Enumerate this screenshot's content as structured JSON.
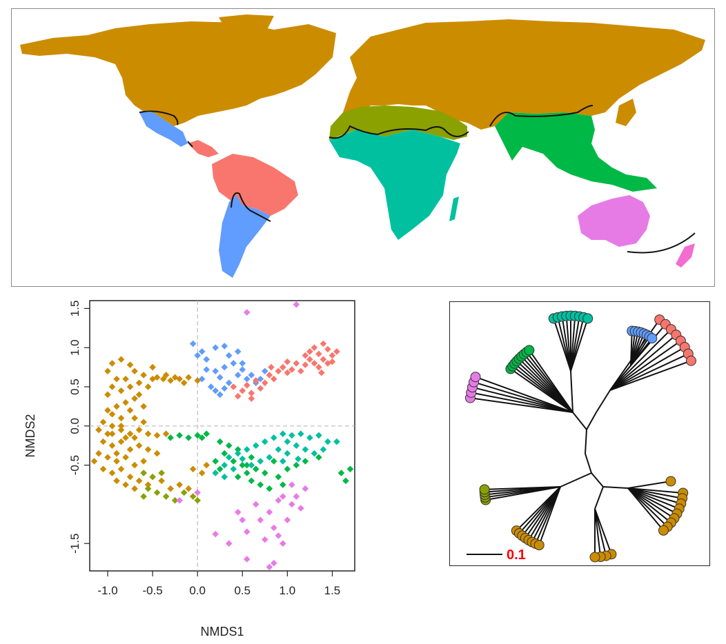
{
  "colors": {
    "palearctic_nearctic": "#cc8c00",
    "saharo_arabian": "#8aa100",
    "afrotropical": "#00c0a0",
    "oriental": "#00b846",
    "australian": "#e77be6",
    "new_zealand": "#f36cd0",
    "neotropical": "#f8766d",
    "panamanian_chilean": "#619cff"
  },
  "chart_data": [
    {
      "type": "scatter",
      "xlabel": "NMDS1",
      "ylabel": "NMDS2",
      "xlim": [
        -1.2,
        1.75
      ],
      "ylim": [
        -1.85,
        1.6
      ],
      "x_ticks": [
        "-1.0",
        "-0.5",
        "0.0",
        "0.5",
        "1.0",
        "1.5"
      ],
      "x_tick_values": [
        -1.0,
        -0.5,
        0.0,
        0.5,
        1.0,
        1.5
      ],
      "y_ticks": [
        "-1.5",
        "-0.5",
        "0.0",
        "0.5",
        "1.0",
        "1.5"
      ],
      "y_tick_values": [
        -1.5,
        -0.5,
        0.0,
        0.5,
        1.0,
        1.5
      ],
      "grid": false,
      "reference_lines": [
        0,
        0
      ],
      "series": [
        {
          "color": "#cc8c00",
          "points": [
            [
              -0.95,
              0.8
            ],
            [
              -0.85,
              0.85
            ],
            [
              -0.75,
              0.78
            ],
            [
              -0.7,
              0.7
            ],
            [
              -0.6,
              0.65
            ],
            [
              -0.5,
              0.6
            ],
            [
              -0.45,
              0.62
            ],
            [
              -0.38,
              0.6
            ],
            [
              -0.3,
              0.58
            ],
            [
              -0.2,
              0.6
            ],
            [
              -0.1,
              0.62
            ],
            [
              0.0,
              0.58
            ],
            [
              -0.15,
              0.55
            ],
            [
              -0.9,
              0.6
            ],
            [
              -0.95,
              0.5
            ],
            [
              -1.0,
              0.4
            ],
            [
              -0.85,
              0.45
            ],
            [
              -0.75,
              0.5
            ],
            [
              -0.65,
              0.4
            ],
            [
              -0.7,
              0.35
            ],
            [
              -0.8,
              0.3
            ],
            [
              -0.9,
              0.25
            ],
            [
              -1.0,
              0.2
            ],
            [
              -0.95,
              0.15
            ],
            [
              -0.85,
              0.1
            ],
            [
              -0.75,
              0.2
            ],
            [
              -0.7,
              0.1
            ],
            [
              -0.6,
              0.05
            ],
            [
              -1.05,
              0.05
            ],
            [
              -1.1,
              -0.05
            ],
            [
              -0.95,
              -0.1
            ],
            [
              -0.85,
              -0.05
            ],
            [
              -0.75,
              -0.1
            ],
            [
              -0.65,
              -0.05
            ],
            [
              -0.55,
              -0.1
            ],
            [
              -0.45,
              -0.12
            ],
            [
              -0.35,
              -0.1
            ],
            [
              -1.05,
              -0.2
            ],
            [
              -0.95,
              -0.25
            ],
            [
              -0.85,
              -0.2
            ],
            [
              -0.75,
              -0.3
            ],
            [
              -0.65,
              -0.25
            ],
            [
              -0.55,
              -0.3
            ],
            [
              -0.45,
              -0.35
            ],
            [
              -1.1,
              -0.35
            ],
            [
              -1.0,
              -0.4
            ],
            [
              -0.9,
              -0.45
            ],
            [
              -0.8,
              -0.4
            ],
            [
              -0.7,
              -0.5
            ],
            [
              -0.6,
              -0.45
            ],
            [
              -1.15,
              -0.45
            ],
            [
              -1.05,
              -0.55
            ],
            [
              -0.95,
              -0.6
            ],
            [
              -0.85,
              -0.55
            ],
            [
              -0.75,
              -0.65
            ],
            [
              -0.65,
              -0.7
            ],
            [
              -0.9,
              -0.7
            ],
            [
              -0.8,
              -0.75
            ],
            [
              -0.7,
              -0.8
            ],
            [
              -0.55,
              -0.75
            ],
            [
              -0.4,
              -0.7
            ],
            [
              -0.3,
              -0.8
            ],
            [
              -0.2,
              -0.75
            ],
            [
              -0.1,
              -0.8
            ],
            [
              0.05,
              -0.6
            ],
            [
              -0.05,
              -0.55
            ],
            [
              -1.0,
              0.7
            ],
            [
              -0.8,
              0.6
            ],
            [
              -0.55,
              0.5
            ],
            [
              -0.85,
              0.0
            ],
            [
              -0.95,
              0.0
            ],
            [
              -0.7,
              -0.15
            ],
            [
              -0.6,
              0.25
            ],
            [
              -0.5,
              0.75
            ],
            [
              -0.65,
              0.55
            ],
            [
              -0.35,
              0.65
            ],
            [
              -0.25,
              0.62
            ],
            [
              -1.0,
              -0.1
            ],
            [
              -0.9,
              -0.35
            ],
            [
              -0.8,
              -0.15
            ],
            [
              0.1,
              -0.5
            ]
          ]
        },
        {
          "color": "#619cff",
          "points": [
            [
              -0.05,
              1.05
            ],
            [
              0.05,
              0.95
            ],
            [
              0.0,
              0.9
            ],
            [
              0.1,
              0.85
            ],
            [
              0.2,
              1.0
            ],
            [
              0.3,
              1.02
            ],
            [
              0.35,
              0.9
            ],
            [
              0.45,
              0.95
            ],
            [
              0.4,
              0.8
            ],
            [
              0.3,
              0.75
            ],
            [
              0.2,
              0.7
            ],
            [
              0.1,
              0.72
            ],
            [
              0.25,
              0.62
            ],
            [
              0.35,
              0.55
            ],
            [
              0.45,
              0.65
            ],
            [
              0.5,
              0.72
            ],
            [
              0.55,
              0.6
            ],
            [
              0.6,
              0.65
            ],
            [
              0.65,
              0.55
            ],
            [
              0.7,
              0.6
            ],
            [
              0.75,
              0.7
            ],
            [
              0.2,
              0.45
            ],
            [
              0.25,
              0.4
            ],
            [
              0.15,
              0.5
            ],
            [
              0.3,
              0.48
            ],
            [
              0.05,
              0.6
            ],
            [
              0.5,
              0.8
            ]
          ]
        },
        {
          "color": "#f8766d",
          "points": [
            [
              0.4,
              0.5
            ],
            [
              0.5,
              0.45
            ],
            [
              0.6,
              0.42
            ],
            [
              0.45,
              0.38
            ],
            [
              0.55,
              0.52
            ],
            [
              0.75,
              0.55
            ],
            [
              0.8,
              0.65
            ],
            [
              0.85,
              0.6
            ],
            [
              0.9,
              0.7
            ],
            [
              0.95,
              0.75
            ],
            [
              1.0,
              0.68
            ],
            [
              1.05,
              0.72
            ],
            [
              1.1,
              0.8
            ],
            [
              1.2,
              0.9
            ],
            [
              1.25,
              0.95
            ],
            [
              1.3,
              1.0
            ],
            [
              1.35,
              0.92
            ],
            [
              1.4,
              0.85
            ],
            [
              1.45,
              0.98
            ],
            [
              1.5,
              0.9
            ],
            [
              1.3,
              0.8
            ],
            [
              1.35,
              0.75
            ],
            [
              1.45,
              0.8
            ],
            [
              1.2,
              0.78
            ],
            [
              1.15,
              0.7
            ],
            [
              1.25,
              0.85
            ],
            [
              1.4,
              1.05
            ],
            [
              1.5,
              0.82
            ],
            [
              0.7,
              0.48
            ],
            [
              0.65,
              0.58
            ],
            [
              0.82,
              0.75
            ],
            [
              1.0,
              0.82
            ],
            [
              0.6,
              0.35
            ],
            [
              1.55,
              0.95
            ],
            [
              1.38,
              0.68
            ]
          ]
        },
        {
          "color": "#00b846",
          "points": [
            [
              -0.3,
              -0.15
            ],
            [
              -0.2,
              -0.12
            ],
            [
              -0.1,
              -0.15
            ],
            [
              0.0,
              -0.12
            ],
            [
              0.05,
              -0.15
            ],
            [
              0.1,
              -0.1
            ],
            [
              0.25,
              -0.2
            ],
            [
              0.35,
              -0.25
            ],
            [
              0.45,
              -0.3
            ],
            [
              0.3,
              -0.35
            ],
            [
              0.4,
              -0.45
            ],
            [
              0.5,
              -0.5
            ],
            [
              0.55,
              -0.6
            ],
            [
              0.45,
              -0.65
            ],
            [
              0.6,
              -0.7
            ],
            [
              0.7,
              -0.75
            ],
            [
              0.8,
              -0.8
            ],
            [
              0.65,
              -0.55
            ],
            [
              0.75,
              -0.6
            ],
            [
              0.9,
              -0.65
            ],
            [
              1.0,
              -0.55
            ],
            [
              1.1,
              -0.5
            ],
            [
              0.85,
              -0.45
            ],
            [
              0.6,
              -0.4
            ],
            [
              0.2,
              -0.45
            ],
            [
              0.25,
              -0.55
            ],
            [
              1.2,
              -0.45
            ],
            [
              1.35,
              -0.4
            ],
            [
              1.6,
              -0.6
            ],
            [
              1.65,
              -0.7
            ],
            [
              1.7,
              -0.55
            ],
            [
              0.95,
              -0.75
            ],
            [
              0.55,
              -0.5
            ]
          ]
        },
        {
          "color": "#00c0a0",
          "points": [
            [
              0.2,
              -0.6
            ],
            [
              0.3,
              -0.5
            ],
            [
              0.35,
              -0.4
            ],
            [
              0.45,
              -0.35
            ],
            [
              0.55,
              -0.3
            ],
            [
              0.65,
              -0.25
            ],
            [
              0.75,
              -0.2
            ],
            [
              0.85,
              -0.15
            ],
            [
              0.95,
              -0.1
            ],
            [
              1.05,
              -0.12
            ],
            [
              1.15,
              -0.1
            ],
            [
              1.25,
              -0.15
            ],
            [
              1.35,
              -0.12
            ],
            [
              1.45,
              -0.2
            ],
            [
              1.55,
              -0.2
            ],
            [
              0.9,
              -0.3
            ],
            [
              1.0,
              -0.35
            ],
            [
              1.1,
              -0.25
            ],
            [
              1.2,
              -0.3
            ],
            [
              1.3,
              -0.35
            ],
            [
              1.4,
              -0.3
            ],
            [
              0.8,
              -0.4
            ],
            [
              0.7,
              -0.45
            ],
            [
              0.6,
              -0.5
            ],
            [
              0.4,
              -0.55
            ],
            [
              0.3,
              -0.65
            ],
            [
              0.5,
              -0.42
            ],
            [
              1.0,
              -0.2
            ],
            [
              1.12,
              -0.42
            ],
            [
              0.95,
              -0.45
            ]
          ]
        },
        {
          "color": "#8aa100",
          "points": [
            [
              -0.6,
              -0.6
            ],
            [
              -0.5,
              -0.65
            ],
            [
              -0.4,
              -0.6
            ],
            [
              -0.55,
              -0.8
            ],
            [
              -0.45,
              -0.85
            ],
            [
              -0.35,
              -0.9
            ],
            [
              -0.25,
              -0.95
            ],
            [
              -0.15,
              -0.85
            ],
            [
              -0.05,
              -0.9
            ],
            [
              0.0,
              -0.95
            ],
            [
              -0.6,
              -0.9
            ]
          ]
        },
        {
          "color": "#e77be6",
          "points": [
            [
              0.55,
              1.45
            ],
            [
              1.1,
              1.55
            ],
            [
              -0.2,
              -0.95
            ],
            [
              0.0,
              -0.85
            ],
            [
              0.2,
              -1.38
            ],
            [
              0.5,
              -1.2
            ],
            [
              0.55,
              -1.35
            ],
            [
              0.35,
              -1.5
            ],
            [
              0.55,
              -1.7
            ],
            [
              0.7,
              -1.2
            ],
            [
              0.8,
              -1.1
            ],
            [
              0.85,
              -1.3
            ],
            [
              0.9,
              -1.4
            ],
            [
              0.95,
              -1.5
            ],
            [
              1.0,
              -1.2
            ],
            [
              1.05,
              -1.0
            ],
            [
              1.1,
              -0.9
            ],
            [
              1.15,
              -1.05
            ],
            [
              1.2,
              -0.8
            ],
            [
              0.9,
              -0.95
            ],
            [
              0.65,
              -1.0
            ],
            [
              0.75,
              -1.45
            ],
            [
              0.85,
              -1.75
            ],
            [
              0.8,
              -1.8
            ],
            [
              0.45,
              -1.1
            ],
            [
              1.05,
              -0.75
            ],
            [
              0.95,
              -0.9
            ]
          ]
        }
      ]
    },
    {
      "type": "tree",
      "scale_bar_label": "0.1"
    }
  ]
}
